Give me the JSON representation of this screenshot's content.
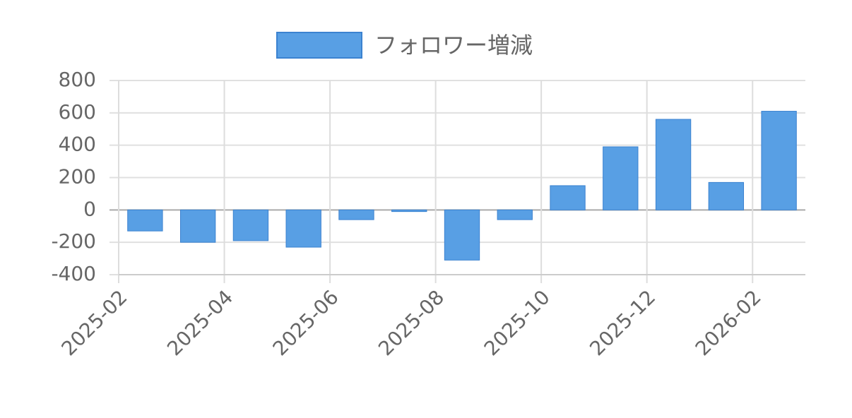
{
  "chart_data": {
    "type": "bar",
    "legend": "フォロワー増減",
    "color": "#589fe4",
    "categories": [
      "2025-02",
      null,
      "2025-04",
      null,
      "2025-06",
      null,
      "2025-08",
      null,
      "2025-10",
      null,
      "2025-12",
      null,
      "2026-02"
    ],
    "values": [
      -130,
      -200,
      -190,
      -230,
      -60,
      -10,
      -310,
      -60,
      150,
      390,
      560,
      170,
      610
    ],
    "ylim": [
      -400,
      800
    ],
    "yticks": [
      -400,
      -200,
      0,
      200,
      400,
      600,
      800
    ],
    "grid": true
  }
}
